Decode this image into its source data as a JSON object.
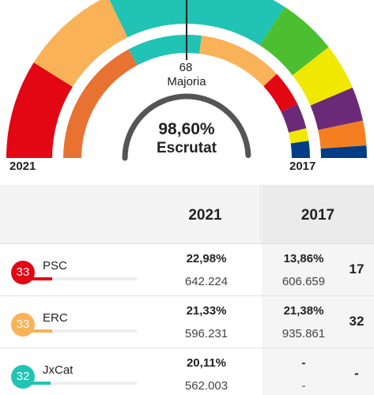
{
  "hemicycle": {
    "majority_number": "68",
    "majority_label": "Majoria",
    "counted_percent": "98,60%",
    "counted_label": "Escrutat",
    "year_left": "2021",
    "year_right": "2017",
    "counted_fraction": 0.986,
    "outer_arc_colors": [
      "#e30613",
      "#f9b257",
      "#20c3b4",
      "#4cbf30",
      "#f0e800",
      "#6a2a78",
      "#f57f20",
      "#003d86"
    ],
    "inner_arc_colors": [
      "#e87232",
      "#20c3b4",
      "#f9b257",
      "#e30613",
      "#6a2a78",
      "#f0e800",
      "#003d86"
    ]
  },
  "table": {
    "header_2021": "2021",
    "header_2017": "2017",
    "rows": [
      {
        "seats": "33",
        "party": "PSC",
        "color": "#e30613",
        "bar_fraction": 0.25,
        "pct_2021": "22,98%",
        "votes_2021": "642.224",
        "pct_2017": "13,86%",
        "votes_2017": "606.659",
        "seats_2017": "17"
      },
      {
        "seats": "33",
        "party": "ERC",
        "color": "#f9b257",
        "bar_fraction": 0.25,
        "pct_2021": "21,33%",
        "votes_2021": "596.231",
        "pct_2017": "21,38%",
        "votes_2017": "935.861",
        "seats_2017": "32"
      },
      {
        "seats": "32",
        "party": "JxCat",
        "color": "#20c3b4",
        "bar_fraction": 0.24,
        "pct_2021": "20,11%",
        "votes_2021": "562.003",
        "pct_2017": "-",
        "votes_2017": "-",
        "seats_2017": "-"
      }
    ]
  }
}
